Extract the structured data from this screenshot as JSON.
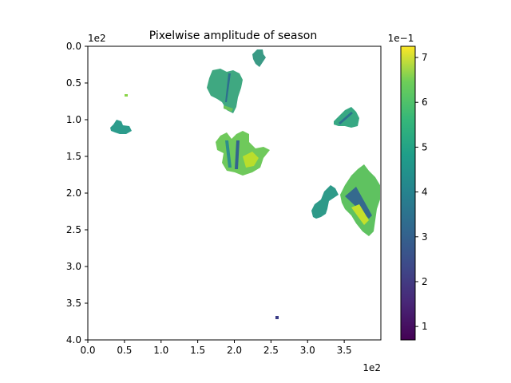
{
  "chart_data": {
    "type": "heatmap",
    "title": "Pixelwise amplitude of season",
    "xlabel": "",
    "ylabel": "",
    "x_range": [
      0,
      400
    ],
    "y_range": [
      0,
      400
    ],
    "y_inverted": true,
    "x_ticks": [
      "0.0",
      "0.5",
      "1.0",
      "1.5",
      "2.0",
      "2.5",
      "3.0",
      "3.5"
    ],
    "x_tick_values": [
      0,
      50,
      100,
      150,
      200,
      250,
      300,
      350
    ],
    "y_ticks": [
      "0.0",
      "0.5",
      "1.0",
      "1.5",
      "2.0",
      "2.5",
      "3.0",
      "3.5",
      "4.0"
    ],
    "y_tick_values": [
      0,
      50,
      100,
      150,
      200,
      250,
      300,
      350,
      400
    ],
    "x_offset_text": "1e2",
    "y_offset_text": "1e2",
    "colormap": "viridis",
    "colorbar": {
      "range": [
        0.7,
        7.25
      ],
      "ticks": [
        "1",
        "2",
        "3",
        "4",
        "5",
        "6",
        "7"
      ],
      "tick_values": [
        1,
        2,
        3,
        4,
        5,
        6,
        7
      ],
      "offset_text": "1e−1"
    },
    "regions": [
      {
        "name": "top-center-small",
        "x": 238,
        "y": 15,
        "value": 4.4
      },
      {
        "name": "upper-left-cluster",
        "x": 195,
        "y": 60,
        "value": 5.2
      },
      {
        "name": "small-dot",
        "x": 52,
        "y": 67,
        "value": 6.3
      },
      {
        "name": "left-patch",
        "x": 47,
        "y": 110,
        "value": 4.1
      },
      {
        "name": "right-upper-patch",
        "x": 356,
        "y": 100,
        "value": 4.7
      },
      {
        "name": "central-cluster",
        "x": 205,
        "y": 150,
        "value": 6.2
      },
      {
        "name": "right-lower-cluster",
        "x": 372,
        "y": 215,
        "value": 6.0
      },
      {
        "name": "right-lower-small",
        "x": 318,
        "y": 220,
        "value": 4.2
      },
      {
        "name": "bottom-dot",
        "x": 258,
        "y": 369,
        "value": 2.8
      }
    ]
  }
}
